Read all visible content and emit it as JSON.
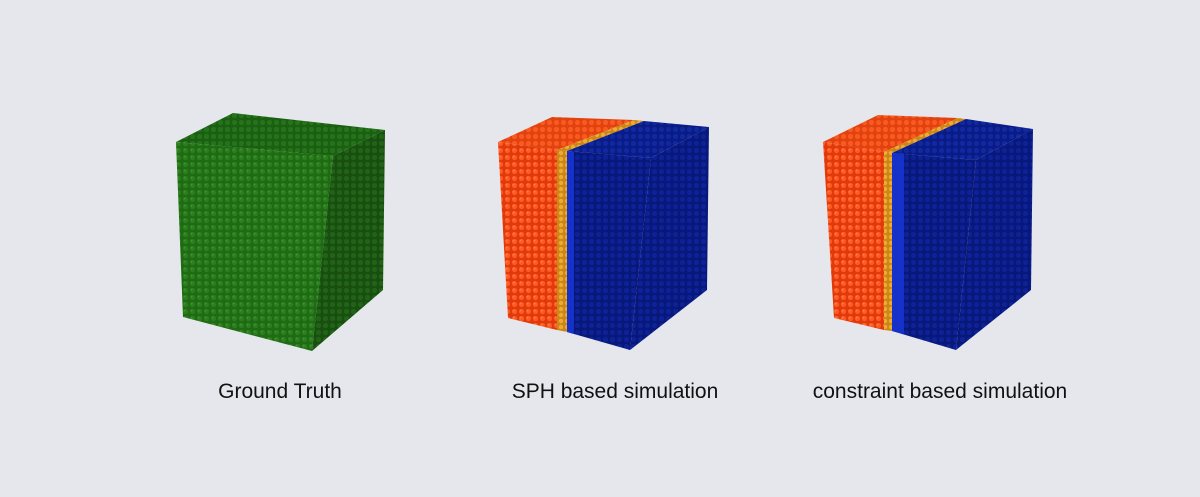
{
  "colors": {
    "background": "#e6e7ec",
    "ground_truth": "#1f6b14",
    "fluid_a": "#f2400f",
    "interface": "#e09a1c",
    "fluid_b": "#0a1b86",
    "fluid_b_edge": "#1836d6"
  },
  "panels": [
    {
      "caption": "Ground Truth",
      "material": "single-fluid-cube"
    },
    {
      "caption": "SPH based simulation",
      "material": "two-fluid-cube"
    },
    {
      "caption": "constraint based simulation",
      "material": "two-fluid-cube"
    }
  ]
}
